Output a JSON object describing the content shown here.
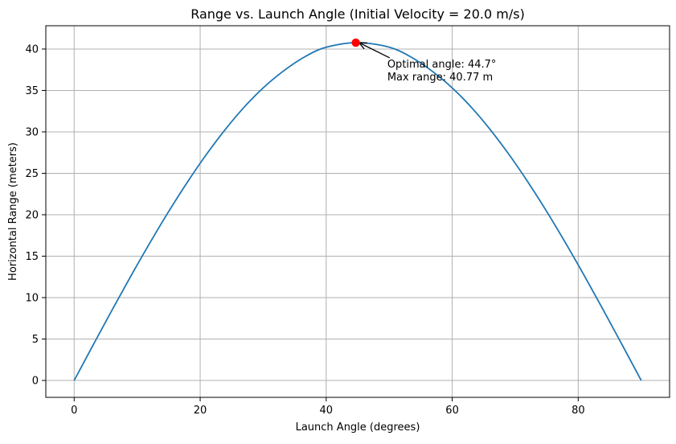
{
  "chart_data": {
    "type": "line",
    "title": "Range vs. Launch Angle (Initial Velocity = 20.0 m/s)",
    "xlabel": "Launch Angle (degrees)",
    "ylabel": "Horizontal Range (meters)",
    "xlim": [
      -4.5,
      94.5
    ],
    "ylim": [
      -2.04,
      42.81
    ],
    "xticks": [
      0,
      20,
      40,
      60,
      80
    ],
    "yticks": [
      0,
      5,
      10,
      15,
      20,
      25,
      30,
      35,
      40
    ],
    "grid": true,
    "line_color": "#1f77b4",
    "series": [
      {
        "x": [
          0,
          3,
          6,
          9,
          12,
          15,
          18,
          21,
          24,
          27,
          30,
          33,
          36,
          39,
          42,
          44.7,
          48,
          51,
          54,
          57,
          60,
          63,
          66,
          69,
          72,
          75,
          78,
          81,
          84,
          87,
          90
        ],
        "values": [
          0,
          4.26,
          8.48,
          12.6,
          16.58,
          20.39,
          23.97,
          27.29,
          30.31,
          33.0,
          35.31,
          37.22,
          38.79,
          39.97,
          40.55,
          40.77,
          40.55,
          39.97,
          38.79,
          37.22,
          35.31,
          33.0,
          30.31,
          27.29,
          23.97,
          20.39,
          16.58,
          12.6,
          8.48,
          4.26,
          0
        ]
      }
    ],
    "optimum": {
      "x": 44.7,
      "y": 40.77,
      "color": "#ff0000",
      "annotation_lines": [
        "Optimal angle: 44.7°",
        "Max range: 40.77 m"
      ],
      "text_x": 49.7,
      "text_y": 37.77
    }
  }
}
